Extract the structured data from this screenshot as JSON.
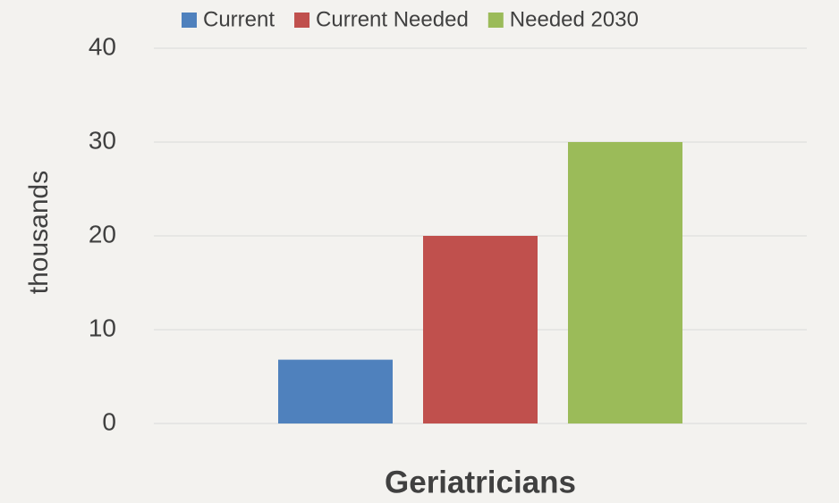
{
  "chart_data": {
    "type": "bar",
    "categories": [
      "Geriatricians"
    ],
    "series": [
      {
        "name": "Current",
        "color": "#4f81bd",
        "values": [
          6.8
        ]
      },
      {
        "name": "Current Needed",
        "color": "#c0504d",
        "values": [
          20
        ]
      },
      {
        "name": "Needed 2030",
        "color": "#9bbb59",
        "values": [
          30
        ]
      }
    ],
    "ylabel": "thousands",
    "ylim": [
      0,
      40
    ],
    "yticks": [
      0,
      10,
      20,
      30,
      40
    ],
    "grid": true,
    "legend": "top"
  }
}
